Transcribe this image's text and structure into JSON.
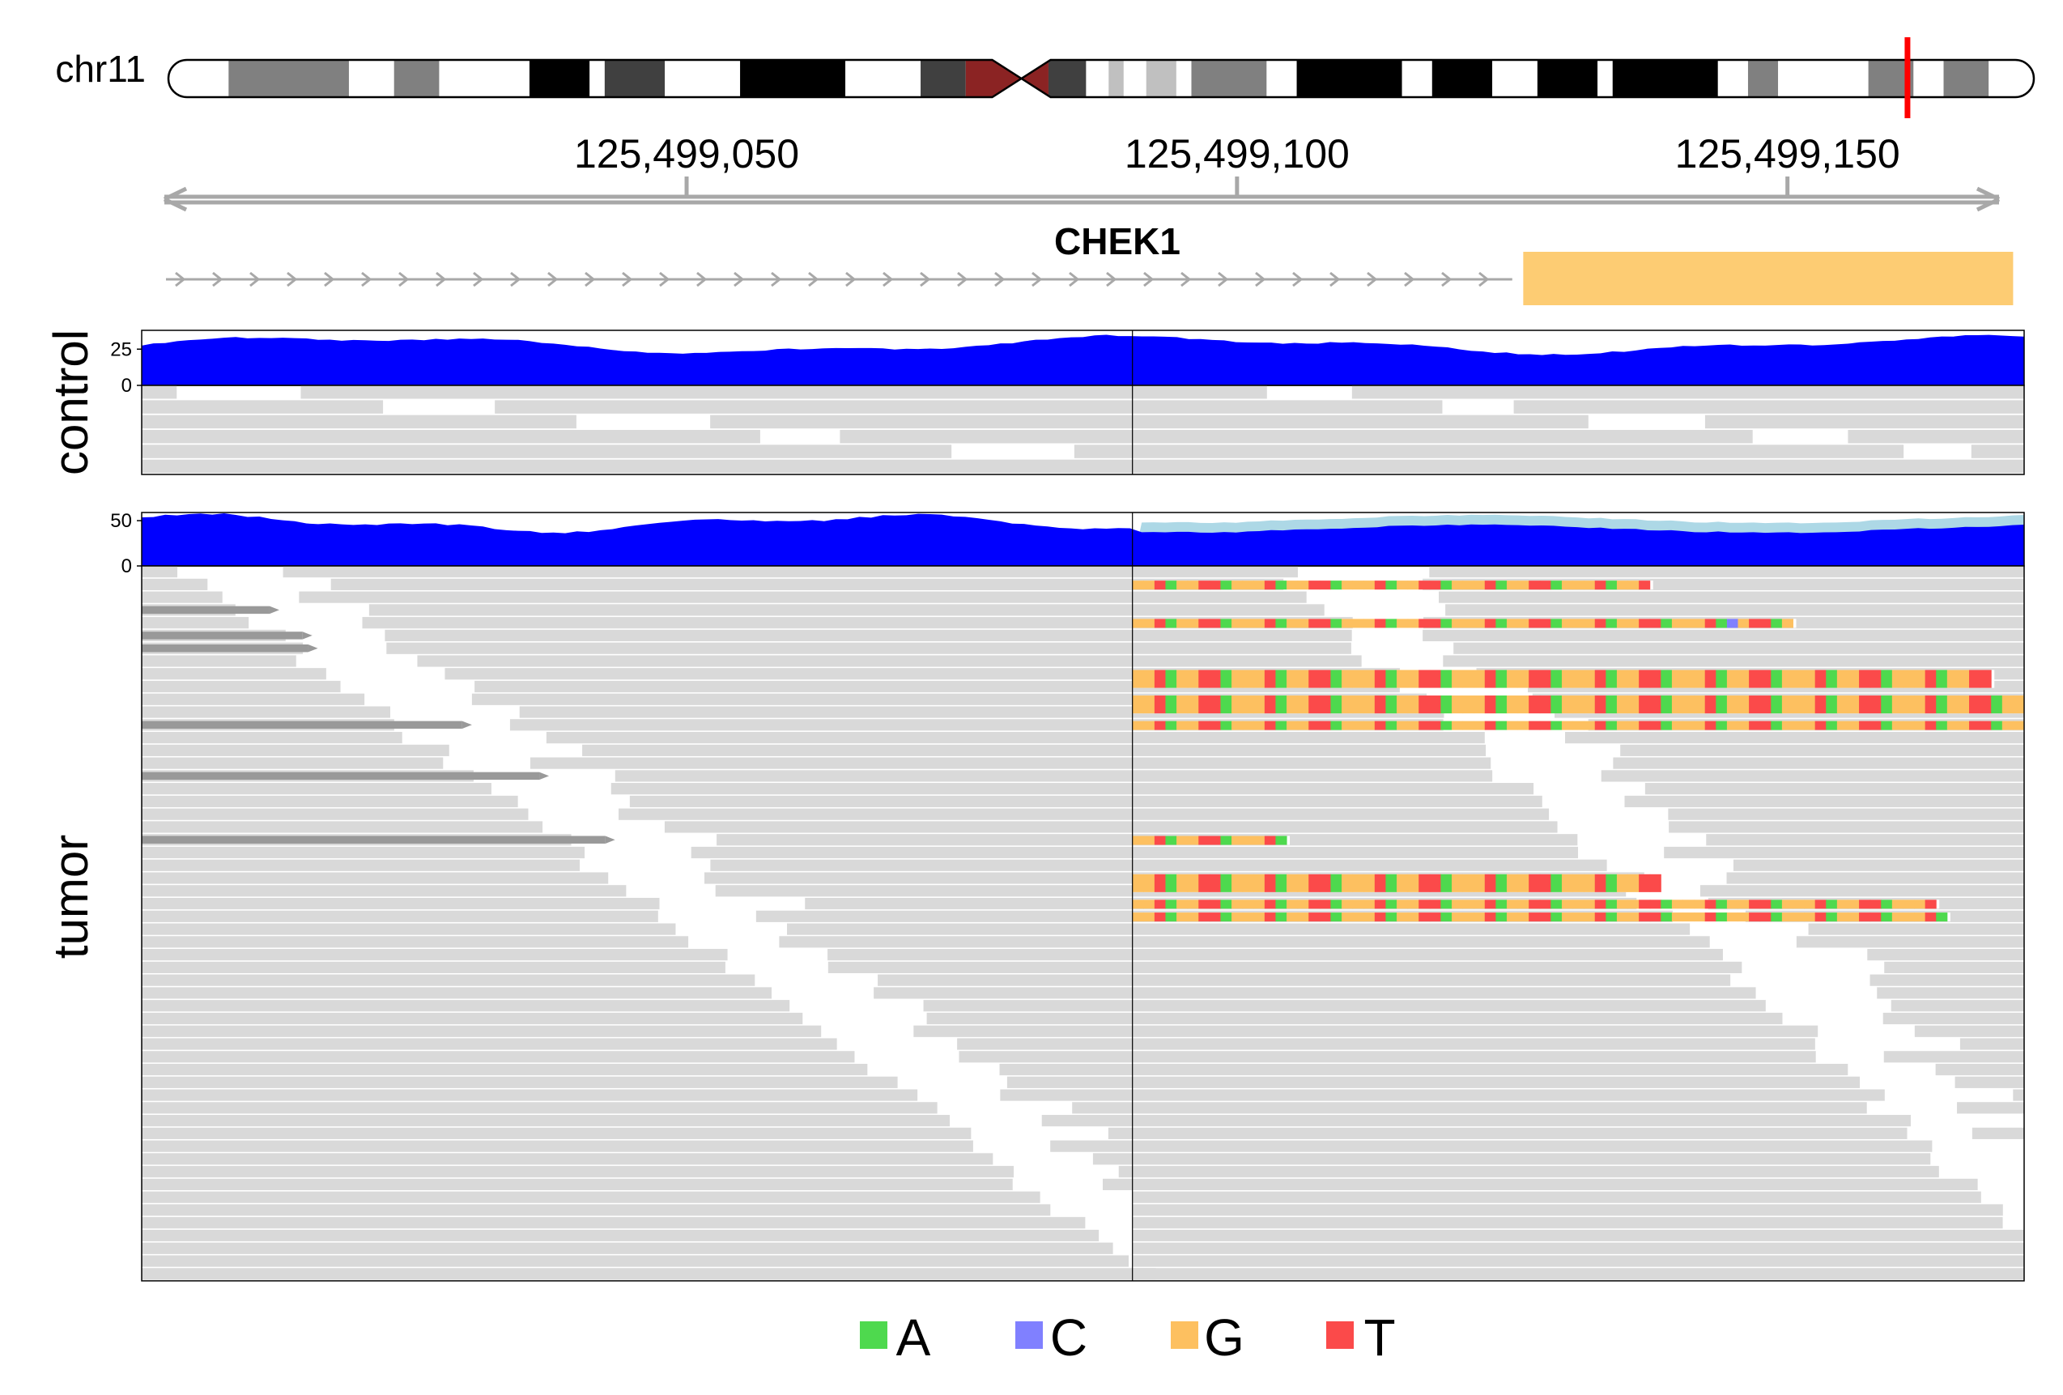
{
  "chromosome": {
    "name": "chr11",
    "bands": [
      {
        "s": 0,
        "e": 4,
        "c": "#ffffff"
      },
      {
        "s": 4,
        "e": 12,
        "c": "#808080"
      },
      {
        "s": 12,
        "e": 15,
        "c": "#ffffff"
      },
      {
        "s": 15,
        "e": 18,
        "c": "#808080"
      },
      {
        "s": 18,
        "e": 24,
        "c": "#ffffff"
      },
      {
        "s": 24,
        "e": 28,
        "c": "#000000"
      },
      {
        "s": 28,
        "e": 29,
        "c": "#ffffff"
      },
      {
        "s": 29,
        "e": 33,
        "c": "#404040"
      },
      {
        "s": 33,
        "e": 38,
        "c": "#ffffff"
      },
      {
        "s": 38,
        "e": 45,
        "c": "#000000"
      },
      {
        "s": 45,
        "e": 50,
        "c": "#ffffff"
      },
      {
        "s": 50,
        "e": 53,
        "c": "#404040"
      },
      {
        "s": 53,
        "e": 58.5,
        "c": "#8b2323"
      },
      {
        "s": 58.5,
        "e": 61,
        "c": "#404040"
      },
      {
        "s": 61,
        "e": 62.5,
        "c": "#ffffff"
      },
      {
        "s": 62.5,
        "e": 63.5,
        "c": "#c0c0c0"
      },
      {
        "s": 63.5,
        "e": 65,
        "c": "#ffffff"
      },
      {
        "s": 65,
        "e": 67,
        "c": "#c0c0c0"
      },
      {
        "s": 67,
        "e": 68,
        "c": "#ffffff"
      },
      {
        "s": 68,
        "e": 73,
        "c": "#808080"
      },
      {
        "s": 73,
        "e": 75,
        "c": "#ffffff"
      },
      {
        "s": 75,
        "e": 82,
        "c": "#000000"
      },
      {
        "s": 82,
        "e": 84,
        "c": "#ffffff"
      },
      {
        "s": 84,
        "e": 88,
        "c": "#000000"
      },
      {
        "s": 88,
        "e": 91,
        "c": "#ffffff"
      },
      {
        "s": 91,
        "e": 95,
        "c": "#000000"
      },
      {
        "s": 95,
        "e": 96,
        "c": "#ffffff"
      },
      {
        "s": 96,
        "e": 103,
        "c": "#000000"
      },
      {
        "s": 103,
        "e": 105,
        "c": "#ffffff"
      },
      {
        "s": 105,
        "e": 107,
        "c": "#808080"
      },
      {
        "s": 107,
        "e": 113,
        "c": "#ffffff"
      },
      {
        "s": 113,
        "e": 116,
        "c": "#808080"
      },
      {
        "s": 116,
        "e": 118,
        "c": "#ffffff"
      },
      {
        "s": 118,
        "e": 121,
        "c": "#808080"
      },
      {
        "s": 121,
        "e": 124,
        "c": "#ffffff"
      }
    ],
    "centromere": 56.7,
    "length": 124,
    "position_marker": 115.6,
    "marker_color": "#ff0000"
  },
  "axis": {
    "ticks": [
      {
        "label": "125,499,050",
        "pos": 125499050
      },
      {
        "label": "125,499,100",
        "pos": 125499100
      },
      {
        "label": "125,499,150",
        "pos": 125499150
      }
    ]
  },
  "gene": {
    "name": "CHEK1",
    "strand": "+",
    "intron_start": 125499000.5,
    "intron_end": 125499125,
    "exon_start": 125499126,
    "exon_end": 125499170.5,
    "exon_color": "#fdcc73"
  },
  "samples": [
    {
      "name": "control",
      "coverage_ticks": [
        "25",
        "0"
      ],
      "coverage_max": 38,
      "coverage_tick_values": [
        25,
        0
      ]
    },
    {
      "name": "tumor",
      "coverage_ticks": [
        "50",
        "0"
      ],
      "coverage_max": 59,
      "coverage_tick_values": [
        50,
        0
      ]
    }
  ],
  "breakpoint": 125499090.5,
  "view": {
    "start": 125499000.5,
    "end": 125499171.5
  },
  "legend": [
    {
      "base": "A",
      "color": "#4ed94e"
    },
    {
      "base": "C",
      "color": "#8080ff"
    },
    {
      "base": "G",
      "color": "#fdc060"
    },
    {
      "base": "T",
      "color": "#fb4a4a"
    }
  ],
  "colors": {
    "coverage": "#0000ff",
    "coverage_soft": "#add8e6",
    "read": "#d9d9d9",
    "read_dark": "#999999",
    "axis": "#a8a8a8"
  }
}
